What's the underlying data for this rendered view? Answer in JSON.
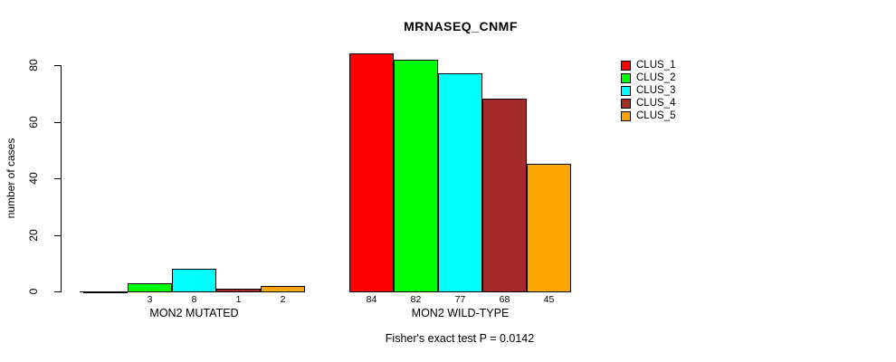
{
  "chart_data": {
    "type": "bar",
    "title": "MRNASEQ_CNMF",
    "xlabel": "",
    "ylabel": "number of cases",
    "ylim": [
      0,
      80
    ],
    "yticks": [
      0,
      20,
      40,
      60,
      80
    ],
    "grid": false,
    "legend_position": "right",
    "annotation": "Fisher's exact test P = 0.0142",
    "bar_value_labels": true,
    "categories": [
      "MON2 MUTATED",
      "MON2 WILD-TYPE"
    ],
    "series": [
      {
        "name": "CLUS_1",
        "color": "#FF0000",
        "values": [
          0,
          84
        ]
      },
      {
        "name": "CLUS_2",
        "color": "#00FF00",
        "values": [
          3,
          82
        ]
      },
      {
        "name": "CLUS_3",
        "color": "#00FFFF",
        "values": [
          8,
          77
        ]
      },
      {
        "name": "CLUS_4",
        "color": "#A52A2A",
        "values": [
          1,
          68
        ]
      },
      {
        "name": "CLUS_5",
        "color": "#FFA500",
        "values": [
          2,
          45
        ]
      }
    ]
  }
}
